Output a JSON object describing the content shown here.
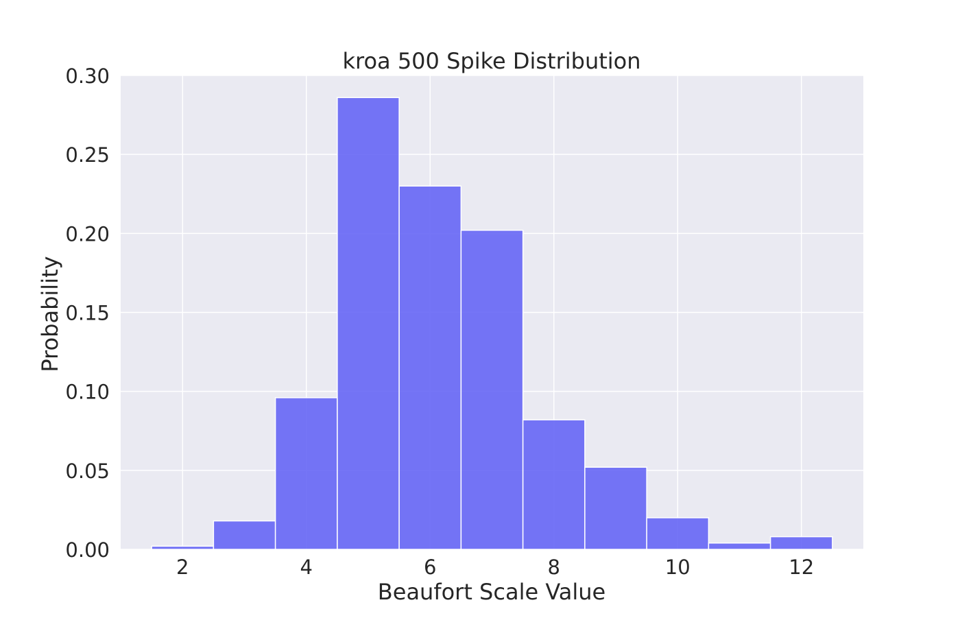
{
  "chart_data": {
    "type": "bar",
    "title": "kroa 500 Spike Distribution",
    "xlabel": "Beaufort Scale Value",
    "ylabel": "Probability",
    "xlim": [
      1.0,
      13.0
    ],
    "ylim": [
      0.0,
      0.3
    ],
    "x_ticks": [
      2,
      4,
      6,
      8,
      10,
      12
    ],
    "x_tick_labels": [
      "2",
      "4",
      "6",
      "8",
      "10",
      "12"
    ],
    "y_ticks": [
      0.0,
      0.05,
      0.1,
      0.15,
      0.2,
      0.25,
      0.3
    ],
    "y_tick_labels": [
      "0.00",
      "0.05",
      "0.10",
      "0.15",
      "0.20",
      "0.25",
      "0.30"
    ],
    "categories": [
      2,
      3,
      4,
      5,
      6,
      7,
      8,
      9,
      10,
      11,
      12
    ],
    "values": [
      0.002,
      0.018,
      0.096,
      0.286,
      0.23,
      0.202,
      0.082,
      0.052,
      0.02,
      0.004,
      0.008
    ],
    "bin_width": 1,
    "grid": true,
    "legend": "none",
    "colors": {
      "bar_fill": "#6666f5",
      "bar_edge": "#ffffff",
      "plot_background": "#eaeaf2",
      "grid": "#ffffff",
      "text": "#262626"
    }
  }
}
